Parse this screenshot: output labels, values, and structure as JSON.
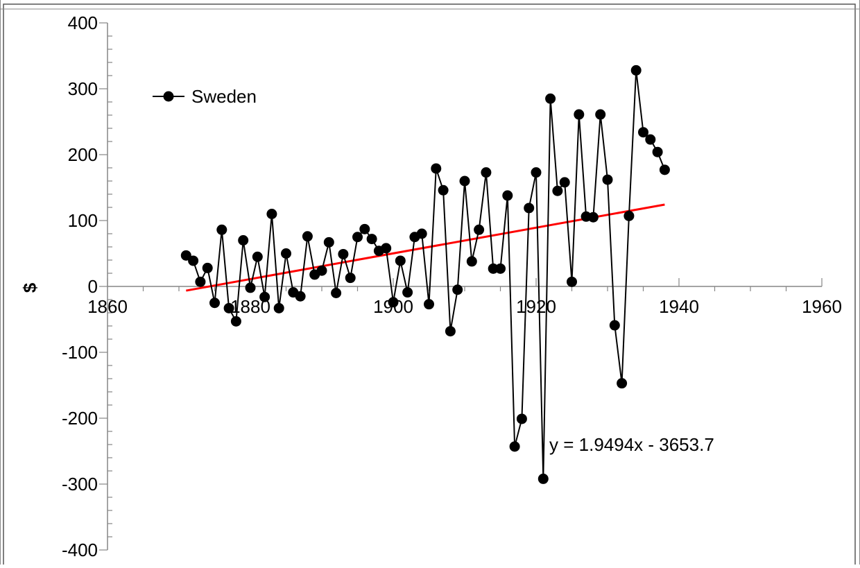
{
  "chart_data": {
    "type": "line",
    "title": "",
    "xlabel": "",
    "ylabel": "$",
    "xlim": [
      1860,
      1960
    ],
    "ylim": [
      -400,
      400
    ],
    "x_ticks": [
      1860,
      1880,
      1900,
      1920,
      1940,
      1960
    ],
    "y_ticks": [
      -400,
      -300,
      -200,
      -100,
      0,
      100,
      200,
      300,
      400
    ],
    "grid": false,
    "legend": {
      "position": "top-left",
      "entries": [
        "Sweden"
      ]
    },
    "colors": {
      "series": "#000000",
      "trendline": "#ff0000"
    },
    "series": [
      {
        "name": "Sweden",
        "x": [
          1871,
          1872,
          1873,
          1874,
          1875,
          1876,
          1877,
          1878,
          1879,
          1880,
          1881,
          1882,
          1883,
          1884,
          1885,
          1886,
          1887,
          1888,
          1889,
          1890,
          1891,
          1892,
          1893,
          1894,
          1895,
          1896,
          1897,
          1898,
          1899,
          1900,
          1901,
          1902,
          1903,
          1904,
          1905,
          1906,
          1907,
          1908,
          1909,
          1910,
          1911,
          1912,
          1913,
          1914,
          1915,
          1916,
          1917,
          1918,
          1919,
          1920,
          1921,
          1922,
          1923,
          1924,
          1925,
          1926,
          1927,
          1928,
          1929,
          1930,
          1931,
          1932,
          1933,
          1934,
          1935,
          1936,
          1937,
          1938
        ],
        "values": [
          47,
          39,
          7,
          28,
          -25,
          86,
          -33,
          -53,
          70,
          -2,
          45,
          -16,
          110,
          -33,
          50,
          -9,
          -15,
          76,
          18,
          24,
          67,
          -10,
          49,
          13,
          75,
          87,
          72,
          54,
          58,
          -24,
          39,
          -9,
          75,
          80,
          -27,
          179,
          146,
          -68,
          -5,
          160,
          38,
          86,
          173,
          27,
          27,
          138,
          -243,
          -201,
          119,
          173,
          -292,
          285,
          145,
          158,
          7,
          261,
          106,
          105,
          261,
          162,
          -59,
          -147,
          107,
          328,
          234,
          223,
          204,
          177
        ]
      }
    ],
    "trendline": {
      "type": "linear",
      "x_range": [
        1871,
        1938
      ],
      "slope": 1.9494,
      "intercept": -3653.7,
      "equation_label": "y = 1.9494x - 3653.7"
    }
  }
}
